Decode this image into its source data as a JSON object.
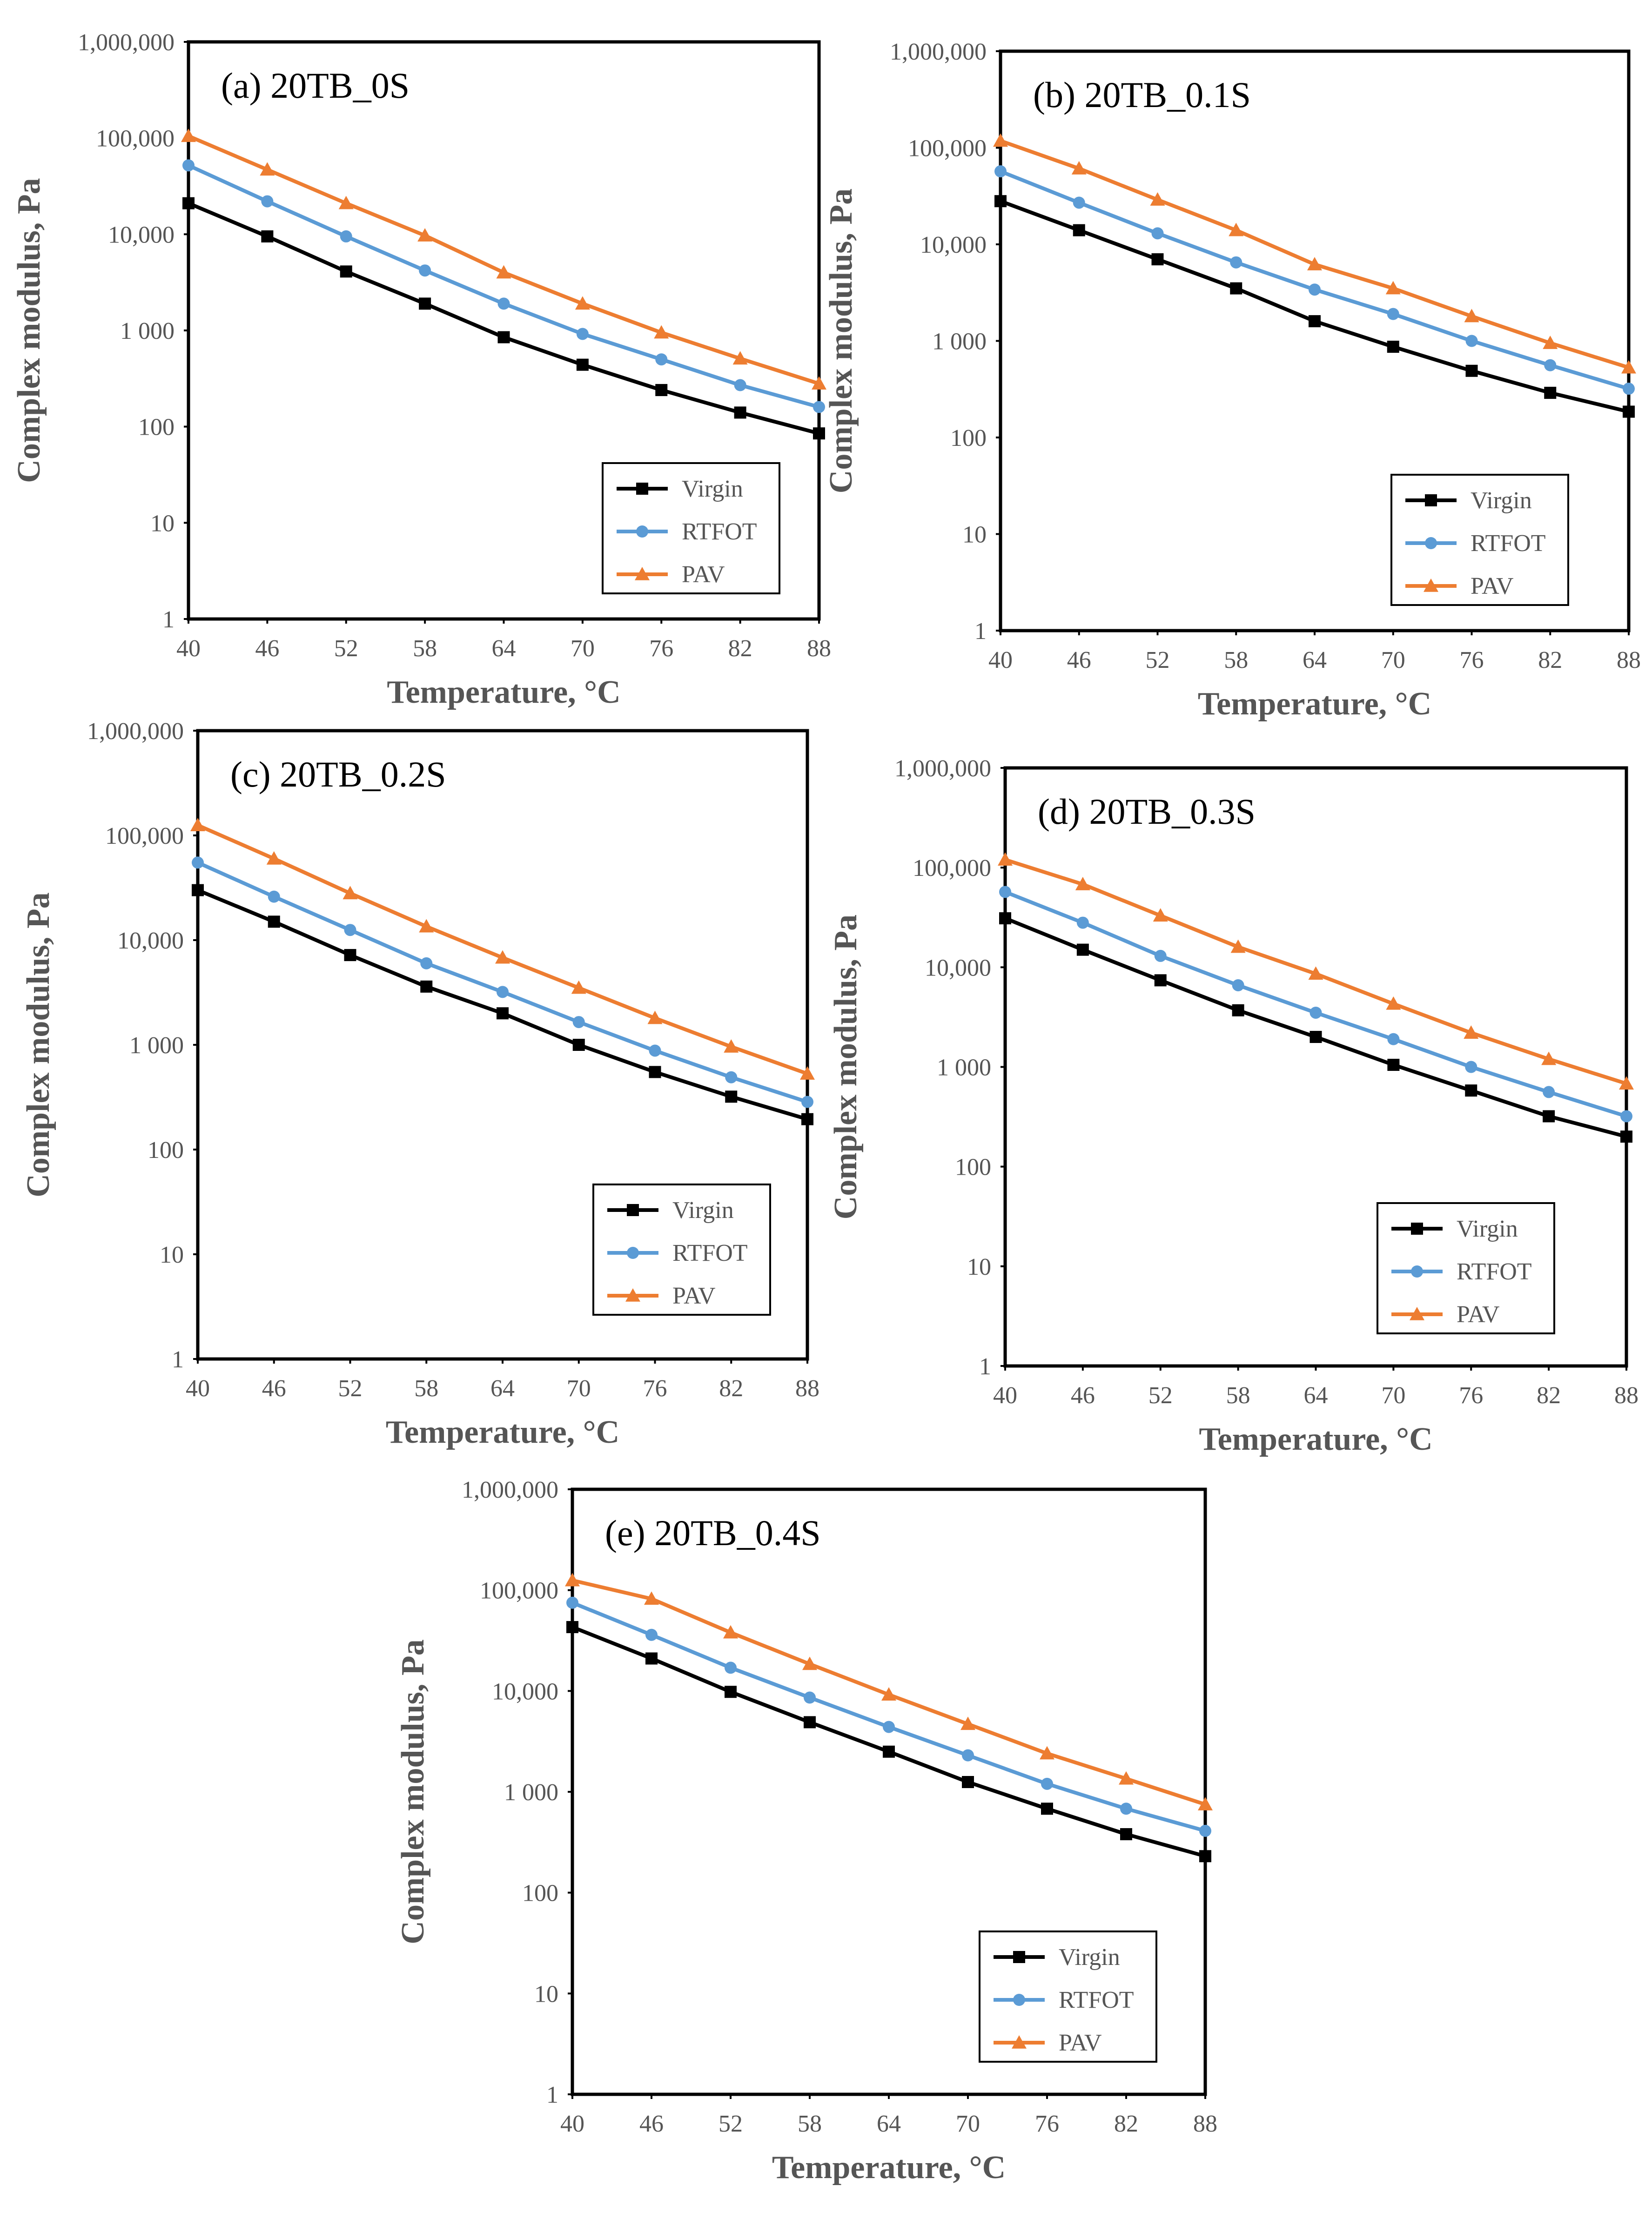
{
  "chart_data": [
    {
      "type": "line",
      "title": "(a) 20TB_0S",
      "xlabel": "Temperature, °C",
      "ylabel": "Complex modulus, Pa",
      "yscale": "log",
      "ylim": [
        1,
        1000000
      ],
      "yticks": [
        "1",
        "10",
        "100",
        "1 000",
        "10,000",
        "100,000",
        "1,000,000"
      ],
      "categories": [
        "40",
        "46",
        "52",
        "58",
        "64",
        "70",
        "76",
        "82",
        "88"
      ],
      "legend_position": "lower-right",
      "series": [
        {
          "name": "Virgin",
          "color": "#000000",
          "marker": "square",
          "values": [
            21000,
            9500,
            4100,
            1900,
            850,
            440,
            240,
            140,
            85
          ]
        },
        {
          "name": "RTFOT",
          "color": "#5B9BD5",
          "marker": "circle",
          "values": [
            52000,
            22000,
            9500,
            4200,
            1900,
            920,
            500,
            270,
            160
          ]
        },
        {
          "name": "PAV",
          "color": "#ED7D31",
          "marker": "triangle",
          "values": [
            105000,
            47000,
            21000,
            9700,
            4000,
            1900,
            950,
            510,
            280
          ]
        }
      ]
    },
    {
      "type": "line",
      "title": "(b) 20TB_0.1S",
      "xlabel": "Temperature, °C",
      "ylabel": "Complex modulus, Pa",
      "yscale": "log",
      "ylim": [
        1,
        1000000
      ],
      "yticks": [
        "1",
        "10",
        "100",
        "1 000",
        "10,000",
        "100,000",
        "1,000,000"
      ],
      "categories": [
        "40",
        "46",
        "52",
        "58",
        "64",
        "70",
        "76",
        "82",
        "88"
      ],
      "legend_position": "lower-right",
      "series": [
        {
          "name": "Virgin",
          "color": "#000000",
          "marker": "square",
          "values": [
            28000,
            14000,
            7000,
            3500,
            1600,
            870,
            490,
            290,
            185
          ]
        },
        {
          "name": "RTFOT",
          "color": "#5B9BD5",
          "marker": "circle",
          "values": [
            57000,
            27000,
            13000,
            6500,
            3400,
            1900,
            1000,
            560,
            320
          ]
        },
        {
          "name": "PAV",
          "color": "#ED7D31",
          "marker": "triangle",
          "values": [
            118000,
            61000,
            29000,
            14000,
            6200,
            3500,
            1800,
            950,
            530
          ]
        }
      ]
    },
    {
      "type": "line",
      "title": "(c) 20TB_0.2S",
      "xlabel": "Temperature, °C",
      "ylabel": "Complex modulus, Pa",
      "yscale": "log",
      "ylim": [
        1,
        1000000
      ],
      "yticks": [
        "1",
        "10",
        "100",
        "1 000",
        "10,000",
        "100,000",
        "1,000,000"
      ],
      "categories": [
        "40",
        "46",
        "52",
        "58",
        "64",
        "70",
        "76",
        "82",
        "88"
      ],
      "legend_position": "lower-right",
      "series": [
        {
          "name": "Virgin",
          "color": "#000000",
          "marker": "square",
          "values": [
            30000,
            15000,
            7200,
            3600,
            2000,
            1000,
            550,
            320,
            195
          ]
        },
        {
          "name": "RTFOT",
          "color": "#5B9BD5",
          "marker": "circle",
          "values": [
            55000,
            26000,
            12500,
            6000,
            3200,
            1650,
            880,
            490,
            285
          ]
        },
        {
          "name": "PAV",
          "color": "#ED7D31",
          "marker": "triangle",
          "values": [
            125000,
            60000,
            28000,
            13500,
            6800,
            3500,
            1800,
            960,
            530
          ]
        }
      ]
    },
    {
      "type": "line",
      "title": "(d) 20TB_0.3S",
      "xlabel": "Temperature, °C",
      "ylabel": "Complex modulus, Pa",
      "yscale": "log",
      "ylim": [
        1,
        1000000
      ],
      "yticks": [
        "1",
        "10",
        "100",
        "1 000",
        "10,000",
        "100,000",
        "1,000,000"
      ],
      "categories": [
        "40",
        "46",
        "52",
        "58",
        "64",
        "70",
        "76",
        "82",
        "88"
      ],
      "legend_position": "lower-right",
      "series": [
        {
          "name": "Virgin",
          "color": "#000000",
          "marker": "square",
          "values": [
            31000,
            15000,
            7400,
            3700,
            2000,
            1050,
            580,
            320,
            200
          ]
        },
        {
          "name": "RTFOT",
          "color": "#5B9BD5",
          "marker": "circle",
          "values": [
            57000,
            28000,
            13000,
            6600,
            3500,
            1900,
            1000,
            560,
            320
          ]
        },
        {
          "name": "PAV",
          "color": "#ED7D31",
          "marker": "triangle",
          "values": [
            120000,
            68000,
            33000,
            16000,
            8600,
            4300,
            2200,
            1200,
            680
          ]
        }
      ]
    },
    {
      "type": "line",
      "title": "(e) 20TB_0.4S",
      "xlabel": "Temperature, °C",
      "ylabel": "Complex modulus, Pa",
      "yscale": "log",
      "ylim": [
        1,
        1000000
      ],
      "yticks": [
        "1",
        "10",
        "100",
        "1 000",
        "10,000",
        "100,000",
        "1,000,000"
      ],
      "categories": [
        "40",
        "46",
        "52",
        "58",
        "64",
        "70",
        "76",
        "82",
        "88"
      ],
      "legend_position": "lower-right",
      "series": [
        {
          "name": "Virgin",
          "color": "#000000",
          "marker": "square",
          "values": [
            43000,
            21000,
            9800,
            4900,
            2500,
            1250,
            680,
            380,
            230
          ]
        },
        {
          "name": "RTFOT",
          "color": "#5B9BD5",
          "marker": "circle",
          "values": [
            75000,
            36000,
            17000,
            8600,
            4400,
            2300,
            1200,
            680,
            410
          ]
        },
        {
          "name": "PAV",
          "color": "#ED7D31",
          "marker": "triangle",
          "values": [
            125000,
            82000,
            38000,
            18500,
            9200,
            4700,
            2400,
            1350,
            750
          ]
        }
      ]
    }
  ]
}
